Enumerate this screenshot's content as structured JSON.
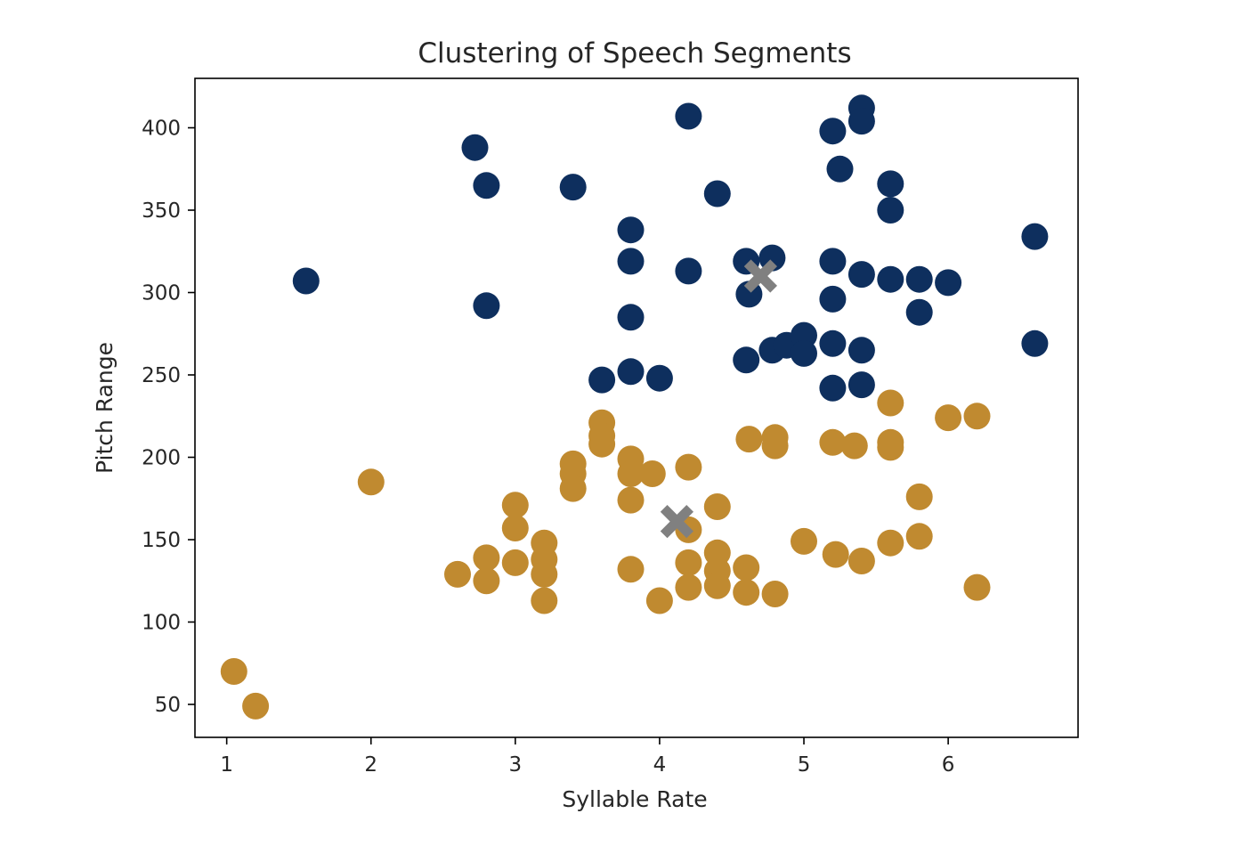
{
  "chart_data": {
    "type": "scatter",
    "title": "Clustering of Speech Segments",
    "xlabel": "Syllable Rate",
    "ylabel": "Pitch Range",
    "xlim": [
      0.78,
      6.9
    ],
    "ylim": [
      30,
      430
    ],
    "xticks": [
      "1",
      "2",
      "3",
      "4",
      "5",
      "6"
    ],
    "yticks": [
      "50",
      "100",
      "150",
      "200",
      "250",
      "300",
      "350",
      "400"
    ],
    "grid": false,
    "legend": "none",
    "series": [
      {
        "color": "#0e2f5e",
        "points": [
          [
            1.55,
            307
          ],
          [
            2.72,
            388
          ],
          [
            2.8,
            365
          ],
          [
            2.8,
            292
          ],
          [
            3.4,
            364
          ],
          [
            3.6,
            247
          ],
          [
            3.8,
            338
          ],
          [
            3.8,
            319
          ],
          [
            3.8,
            285
          ],
          [
            3.8,
            252
          ],
          [
            4.0,
            248
          ],
          [
            4.2,
            407
          ],
          [
            4.2,
            313
          ],
          [
            4.4,
            360
          ],
          [
            4.6,
            319
          ],
          [
            4.6,
            259
          ],
          [
            4.62,
            299
          ],
          [
            4.78,
            321
          ],
          [
            4.78,
            265
          ],
          [
            4.88,
            268
          ],
          [
            5.0,
            274
          ],
          [
            5.0,
            263
          ],
          [
            5.2,
            398
          ],
          [
            5.2,
            319
          ],
          [
            5.2,
            296
          ],
          [
            5.2,
            269
          ],
          [
            5.2,
            242
          ],
          [
            5.25,
            375
          ],
          [
            5.4,
            412
          ],
          [
            5.4,
            404
          ],
          [
            5.4,
            311
          ],
          [
            5.4,
            265
          ],
          [
            5.4,
            244
          ],
          [
            5.6,
            366
          ],
          [
            5.6,
            350
          ],
          [
            5.6,
            308
          ],
          [
            5.8,
            308
          ],
          [
            5.8,
            288
          ],
          [
            6.0,
            306
          ],
          [
            6.6,
            334
          ],
          [
            6.6,
            269
          ]
        ]
      },
      {
        "color": "#c08a30",
        "points": [
          [
            1.05,
            70
          ],
          [
            1.2,
            49
          ],
          [
            2.0,
            185
          ],
          [
            2.6,
            129
          ],
          [
            2.8,
            139
          ],
          [
            2.8,
            125
          ],
          [
            3.0,
            171
          ],
          [
            3.0,
            157
          ],
          [
            3.0,
            136
          ],
          [
            3.2,
            148
          ],
          [
            3.2,
            138
          ],
          [
            3.2,
            129
          ],
          [
            3.2,
            113
          ],
          [
            3.4,
            196
          ],
          [
            3.4,
            190
          ],
          [
            3.4,
            181
          ],
          [
            3.6,
            221
          ],
          [
            3.6,
            213
          ],
          [
            3.6,
            208
          ],
          [
            3.8,
            199
          ],
          [
            3.8,
            190
          ],
          [
            3.8,
            174
          ],
          [
            3.8,
            132
          ],
          [
            3.95,
            190
          ],
          [
            4.0,
            113
          ],
          [
            4.2,
            194
          ],
          [
            4.2,
            156
          ],
          [
            4.2,
            136
          ],
          [
            4.2,
            121
          ],
          [
            4.4,
            170
          ],
          [
            4.4,
            142
          ],
          [
            4.4,
            131
          ],
          [
            4.4,
            122
          ],
          [
            4.6,
            133
          ],
          [
            4.6,
            118
          ],
          [
            4.62,
            211
          ],
          [
            4.8,
            212
          ],
          [
            4.8,
            207
          ],
          [
            4.8,
            117
          ],
          [
            5.0,
            149
          ],
          [
            5.2,
            209
          ],
          [
            5.22,
            141
          ],
          [
            5.35,
            207
          ],
          [
            5.4,
            137
          ],
          [
            5.6,
            233
          ],
          [
            5.6,
            209
          ],
          [
            5.6,
            206
          ],
          [
            5.6,
            148
          ],
          [
            5.8,
            176
          ],
          [
            5.8,
            152
          ],
          [
            6.0,
            224
          ],
          [
            6.2,
            225
          ],
          [
            6.2,
            121
          ]
        ]
      }
    ],
    "centroids": {
      "color": "#808080",
      "marker": "X",
      "points": [
        [
          4.7,
          310
        ],
        [
          4.12,
          161
        ]
      ]
    }
  }
}
